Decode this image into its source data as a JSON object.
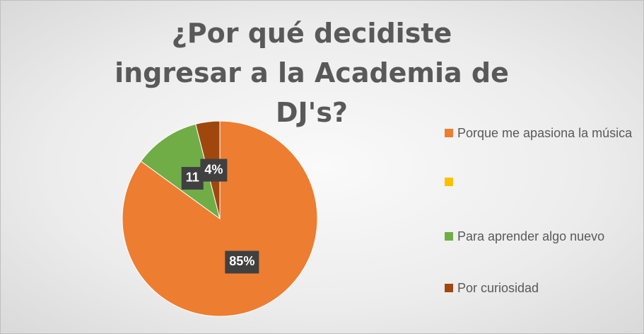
{
  "chart_data": {
    "type": "pie",
    "title": "¿Por qué decidiste ingresar a la Academia de DJ's?",
    "categories": [
      "Porque me apasiona la música",
      null,
      "Para aprender algo nuevo",
      "Por curiosidad"
    ],
    "values": [
      85,
      0,
      11,
      4
    ],
    "value_labels": [
      "85%",
      null,
      "11",
      "4%"
    ],
    "colors": [
      "#ed7d31",
      "#ffc000",
      "#70ad47",
      "#9e480e"
    ],
    "legend": "right"
  }
}
